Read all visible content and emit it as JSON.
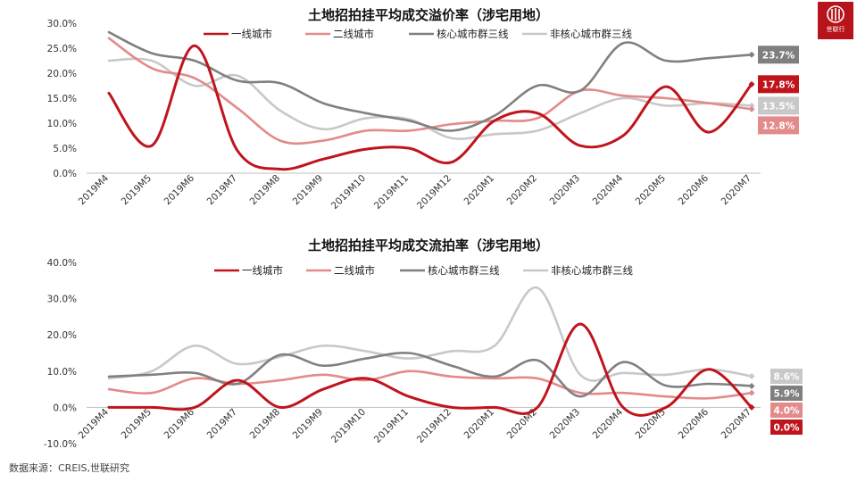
{
  "logo": {
    "text": "世联行"
  },
  "source": "数据来源：CREIS,世联研究",
  "colors": {
    "tier1": "#c0141c",
    "tier2": "#e38a8a",
    "core": "#808080",
    "noncore": "#c8c8c8"
  },
  "categories": [
    "2019M4",
    "2019M5",
    "2019M6",
    "2019M7",
    "2019M8",
    "2019M9",
    "2019M10",
    "2019M11",
    "2019M12",
    "2020M1",
    "2020M2",
    "2020M3",
    "2020M4",
    "2020M5",
    "2020M6",
    "2020M7"
  ],
  "chart_data": [
    {
      "type": "line",
      "title": "土地招拍挂平均成交溢价率（涉宅用地）",
      "ylim": [
        0,
        30
      ],
      "yticks": [
        "0.0%",
        "5.0%",
        "10.0%",
        "15.0%",
        "20.0%",
        "25.0%",
        "30.0%"
      ],
      "legend_position": "top",
      "series": [
        {
          "name": "一线城市",
          "key": "tier1",
          "values": [
            16.0,
            5.5,
            25.5,
            4.5,
            0.8,
            2.8,
            4.8,
            5.0,
            2.2,
            10.5,
            12.0,
            5.5,
            7.5,
            17.3,
            8.2,
            17.8
          ],
          "end_label": "17.8%"
        },
        {
          "name": "二线城市",
          "key": "tier2",
          "values": [
            27.0,
            21.0,
            19.0,
            13.0,
            6.5,
            6.5,
            8.5,
            8.5,
            9.8,
            10.5,
            11.0,
            16.5,
            15.5,
            15.0,
            14.0,
            12.8
          ],
          "end_label": "12.8%"
        },
        {
          "name": "核心城市群三线",
          "key": "core",
          "values": [
            28.2,
            24.0,
            22.5,
            18.5,
            18.0,
            14.0,
            12.0,
            10.5,
            8.5,
            11.5,
            17.5,
            16.5,
            26.0,
            22.5,
            23.0,
            23.7
          ],
          "end_label": "23.7%"
        },
        {
          "name": "非核心城市群三线",
          "key": "noncore",
          "values": [
            22.5,
            22.5,
            17.5,
            19.5,
            12.5,
            8.8,
            11.0,
            10.8,
            7.0,
            7.8,
            8.5,
            12.0,
            15.0,
            13.5,
            14.0,
            13.5
          ],
          "end_label": "13.5%"
        }
      ]
    },
    {
      "type": "line",
      "title": "土地招拍挂平均成交流拍率（涉宅用地）",
      "ylim": [
        -10,
        40
      ],
      "yticks": [
        "-10.0%",
        "0.0%",
        "10.0%",
        "20.0%",
        "30.0%",
        "40.0%"
      ],
      "legend_position": "top",
      "series": [
        {
          "name": "一线城市",
          "key": "tier1",
          "values": [
            0.0,
            0.0,
            0.0,
            7.5,
            0.0,
            5.0,
            8.0,
            3.0,
            0.0,
            0.0,
            0.0,
            23.0,
            0.0,
            0.0,
            10.5,
            0.0
          ],
          "end_label": "0.0%"
        },
        {
          "name": "二线城市",
          "key": "tier2",
          "values": [
            5.0,
            4.0,
            8.0,
            6.5,
            7.5,
            9.0,
            7.5,
            10.0,
            8.5,
            8.0,
            8.0,
            4.0,
            4.0,
            3.0,
            2.5,
            4.0
          ],
          "end_label": "4.0%"
        },
        {
          "name": "核心城市群三线",
          "key": "core",
          "values": [
            8.5,
            9.0,
            9.5,
            6.5,
            14.5,
            11.5,
            13.5,
            15.0,
            11.5,
            8.5,
            13.0,
            3.0,
            12.5,
            6.0,
            6.5,
            5.9
          ],
          "end_label": "5.9%"
        },
        {
          "name": "非核心城市群三线",
          "key": "noncore",
          "values": [
            8.0,
            10.0,
            17.0,
            12.0,
            14.0,
            17.0,
            15.5,
            13.5,
            15.5,
            17.0,
            33.0,
            9.0,
            9.5,
            9.0,
            10.5,
            8.6
          ],
          "end_label": "8.6%"
        }
      ]
    }
  ]
}
